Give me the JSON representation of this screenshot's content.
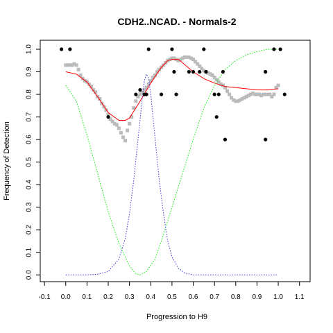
{
  "chart_data": {
    "type": "scatter",
    "title": "CDH2..NCAD. - Normals-2",
    "xlabel": "Progression to H9",
    "ylabel": "Frequency of Detection",
    "xlim": [
      -0.12,
      1.15
    ],
    "ylim": [
      -0.03,
      1.04
    ],
    "x_ticks": [
      -0.1,
      0,
      0.1,
      0.2,
      0.3,
      0.4,
      0.5,
      0.6,
      0.7,
      0.8,
      0.9,
      1.0,
      1.1
    ],
    "x_tick_labels": [
      "-0.1",
      "0.0",
      "0.1",
      "0.2",
      "0.3",
      "0.4",
      "0.5",
      "0.6",
      "0.7",
      "0.8",
      "0.9",
      "1.0",
      "1.1"
    ],
    "y_ticks": [
      0,
      0.1,
      0.2,
      0.3,
      0.4,
      0.5,
      0.6,
      0.7,
      0.8,
      0.9,
      1.0
    ],
    "y_tick_labels": [
      "0.0",
      "0.1",
      "0.2",
      "0.3",
      "0.4",
      "0.5",
      "0.6",
      "0.7",
      "0.8",
      "0.9",
      "1.0"
    ],
    "grid": false,
    "legend": "none",
    "series": [
      {
        "kind": "points",
        "color": "#000000",
        "points": [
          [
            -0.02,
            1.0
          ],
          [
            0.02,
            1.0
          ],
          [
            0.2,
            0.7
          ],
          [
            0.33,
            0.8
          ],
          [
            0.35,
            0.82
          ],
          [
            0.37,
            0.8
          ],
          [
            0.38,
            0.8
          ],
          [
            0.39,
            1.0
          ],
          [
            0.45,
            0.8
          ],
          [
            0.5,
            1.0
          ],
          [
            0.51,
            0.9
          ],
          [
            0.52,
            0.8
          ],
          [
            0.58,
            0.9
          ],
          [
            0.6,
            0.9
          ],
          [
            0.63,
            0.9
          ],
          [
            0.65,
            1.0
          ],
          [
            0.66,
            0.9
          ],
          [
            0.7,
            0.8
          ],
          [
            0.71,
            0.7
          ],
          [
            0.72,
            0.8
          ],
          [
            0.74,
            0.9
          ],
          [
            0.75,
            0.6
          ],
          [
            0.94,
            0.9
          ],
          [
            0.94,
            0.6
          ],
          [
            0.98,
            1.0
          ],
          [
            1.01,
            1.0
          ],
          [
            1.03,
            0.8
          ]
        ]
      },
      {
        "kind": "smoothed-points",
        "color": "#bbbbbb",
        "points": [
          [
            0.0,
            0.93
          ],
          [
            0.01,
            0.93
          ],
          [
            0.02,
            0.93
          ],
          [
            0.03,
            0.93
          ],
          [
            0.04,
            0.935
          ],
          [
            0.05,
            0.93
          ],
          [
            0.06,
            0.91
          ],
          [
            0.07,
            0.885
          ],
          [
            0.08,
            0.87
          ],
          [
            0.09,
            0.86
          ],
          [
            0.1,
            0.855
          ],
          [
            0.11,
            0.845
          ],
          [
            0.12,
            0.835
          ],
          [
            0.13,
            0.82
          ],
          [
            0.14,
            0.81
          ],
          [
            0.15,
            0.79
          ],
          [
            0.16,
            0.78
          ],
          [
            0.17,
            0.76
          ],
          [
            0.18,
            0.745
          ],
          [
            0.19,
            0.73
          ],
          [
            0.2,
            0.71
          ],
          [
            0.21,
            0.69
          ],
          [
            0.22,
            0.68
          ],
          [
            0.23,
            0.67
          ],
          [
            0.24,
            0.665
          ],
          [
            0.25,
            0.65
          ],
          [
            0.26,
            0.63
          ],
          [
            0.27,
            0.61
          ],
          [
            0.28,
            0.595
          ],
          [
            0.29,
            0.64
          ],
          [
            0.3,
            0.67
          ],
          [
            0.31,
            0.7
          ],
          [
            0.32,
            0.74
          ],
          [
            0.33,
            0.77
          ],
          [
            0.34,
            0.79
          ],
          [
            0.35,
            0.8
          ],
          [
            0.36,
            0.81
          ],
          [
            0.37,
            0.82
          ],
          [
            0.38,
            0.83
          ],
          [
            0.39,
            0.845
          ],
          [
            0.4,
            0.86
          ],
          [
            0.41,
            0.875
          ],
          [
            0.42,
            0.885
          ],
          [
            0.43,
            0.9
          ],
          [
            0.44,
            0.91
          ],
          [
            0.45,
            0.92
          ],
          [
            0.46,
            0.93
          ],
          [
            0.47,
            0.94
          ],
          [
            0.48,
            0.95
          ],
          [
            0.49,
            0.955
          ],
          [
            0.5,
            0.96
          ],
          [
            0.51,
            0.96
          ],
          [
            0.52,
            0.955
          ],
          [
            0.53,
            0.95
          ],
          [
            0.54,
            0.955
          ],
          [
            0.55,
            0.96
          ],
          [
            0.56,
            0.965
          ],
          [
            0.57,
            0.965
          ],
          [
            0.58,
            0.965
          ],
          [
            0.59,
            0.96
          ],
          [
            0.6,
            0.955
          ],
          [
            0.61,
            0.945
          ],
          [
            0.62,
            0.935
          ],
          [
            0.63,
            0.925
          ],
          [
            0.64,
            0.915
          ],
          [
            0.65,
            0.905
          ],
          [
            0.66,
            0.9
          ],
          [
            0.67,
            0.895
          ],
          [
            0.68,
            0.89
          ],
          [
            0.69,
            0.885
          ],
          [
            0.7,
            0.875
          ],
          [
            0.71,
            0.865
          ],
          [
            0.72,
            0.855
          ],
          [
            0.73,
            0.845
          ],
          [
            0.74,
            0.84
          ],
          [
            0.75,
            0.83
          ],
          [
            0.76,
            0.815
          ],
          [
            0.77,
            0.8
          ],
          [
            0.78,
            0.785
          ],
          [
            0.79,
            0.775
          ],
          [
            0.8,
            0.77
          ],
          [
            0.81,
            0.77
          ],
          [
            0.82,
            0.775
          ],
          [
            0.83,
            0.78
          ],
          [
            0.84,
            0.785
          ],
          [
            0.85,
            0.79
          ],
          [
            0.86,
            0.795
          ],
          [
            0.87,
            0.8
          ],
          [
            0.88,
            0.805
          ],
          [
            0.89,
            0.8
          ],
          [
            0.9,
            0.8
          ],
          [
            0.91,
            0.8
          ],
          [
            0.92,
            0.795
          ],
          [
            0.93,
            0.8
          ],
          [
            0.94,
            0.8
          ],
          [
            0.95,
            0.8
          ],
          [
            0.96,
            0.8
          ],
          [
            0.97,
            0.79
          ],
          [
            0.98,
            0.8
          ],
          [
            0.99,
            0.83
          ],
          [
            1.0,
            0.84
          ]
        ]
      },
      {
        "kind": "line",
        "color": "#ff0000",
        "dashed": false,
        "points": [
          [
            0.0,
            0.9
          ],
          [
            0.05,
            0.89
          ],
          [
            0.1,
            0.855
          ],
          [
            0.15,
            0.79
          ],
          [
            0.2,
            0.72
          ],
          [
            0.25,
            0.685
          ],
          [
            0.28,
            0.685
          ],
          [
            0.3,
            0.695
          ],
          [
            0.35,
            0.77
          ],
          [
            0.4,
            0.85
          ],
          [
            0.45,
            0.92
          ],
          [
            0.48,
            0.95
          ],
          [
            0.5,
            0.955
          ],
          [
            0.53,
            0.955
          ],
          [
            0.55,
            0.94
          ],
          [
            0.6,
            0.9
          ],
          [
            0.65,
            0.87
          ],
          [
            0.7,
            0.85
          ],
          [
            0.75,
            0.835
          ],
          [
            0.8,
            0.83
          ],
          [
            0.85,
            0.825
          ],
          [
            0.9,
            0.82
          ],
          [
            0.95,
            0.82
          ],
          [
            1.0,
            0.825
          ]
        ]
      },
      {
        "kind": "line",
        "color": "#00ee00",
        "dashed": true,
        "points": [
          [
            0.0,
            0.84
          ],
          [
            0.05,
            0.77
          ],
          [
            0.1,
            0.62
          ],
          [
            0.15,
            0.45
          ],
          [
            0.2,
            0.28
          ],
          [
            0.25,
            0.14
          ],
          [
            0.3,
            0.04
          ],
          [
            0.33,
            0.005
          ],
          [
            0.35,
            0.0
          ],
          [
            0.38,
            0.015
          ],
          [
            0.42,
            0.07
          ],
          [
            0.45,
            0.15
          ],
          [
            0.5,
            0.3
          ],
          [
            0.55,
            0.45
          ],
          [
            0.6,
            0.6
          ],
          [
            0.65,
            0.74
          ],
          [
            0.7,
            0.84
          ],
          [
            0.75,
            0.91
          ],
          [
            0.8,
            0.95
          ],
          [
            0.85,
            0.975
          ],
          [
            0.9,
            0.99
          ],
          [
            0.95,
            1.0
          ],
          [
            1.0,
            1.0
          ]
        ]
      },
      {
        "kind": "line",
        "color": "#3333dd",
        "dashed": true,
        "points": [
          [
            0.0,
            0.0
          ],
          [
            0.1,
            0.0
          ],
          [
            0.15,
            0.003
          ],
          [
            0.2,
            0.015
          ],
          [
            0.25,
            0.07
          ],
          [
            0.28,
            0.16
          ],
          [
            0.3,
            0.27
          ],
          [
            0.32,
            0.42
          ],
          [
            0.34,
            0.6
          ],
          [
            0.36,
            0.78
          ],
          [
            0.37,
            0.86
          ],
          [
            0.38,
            0.89
          ],
          [
            0.39,
            0.87
          ],
          [
            0.4,
            0.8
          ],
          [
            0.42,
            0.61
          ],
          [
            0.44,
            0.42
          ],
          [
            0.46,
            0.27
          ],
          [
            0.48,
            0.15
          ],
          [
            0.5,
            0.08
          ],
          [
            0.53,
            0.03
          ],
          [
            0.56,
            0.008
          ],
          [
            0.6,
            0.0
          ],
          [
            1.0,
            0.0
          ]
        ]
      }
    ]
  }
}
